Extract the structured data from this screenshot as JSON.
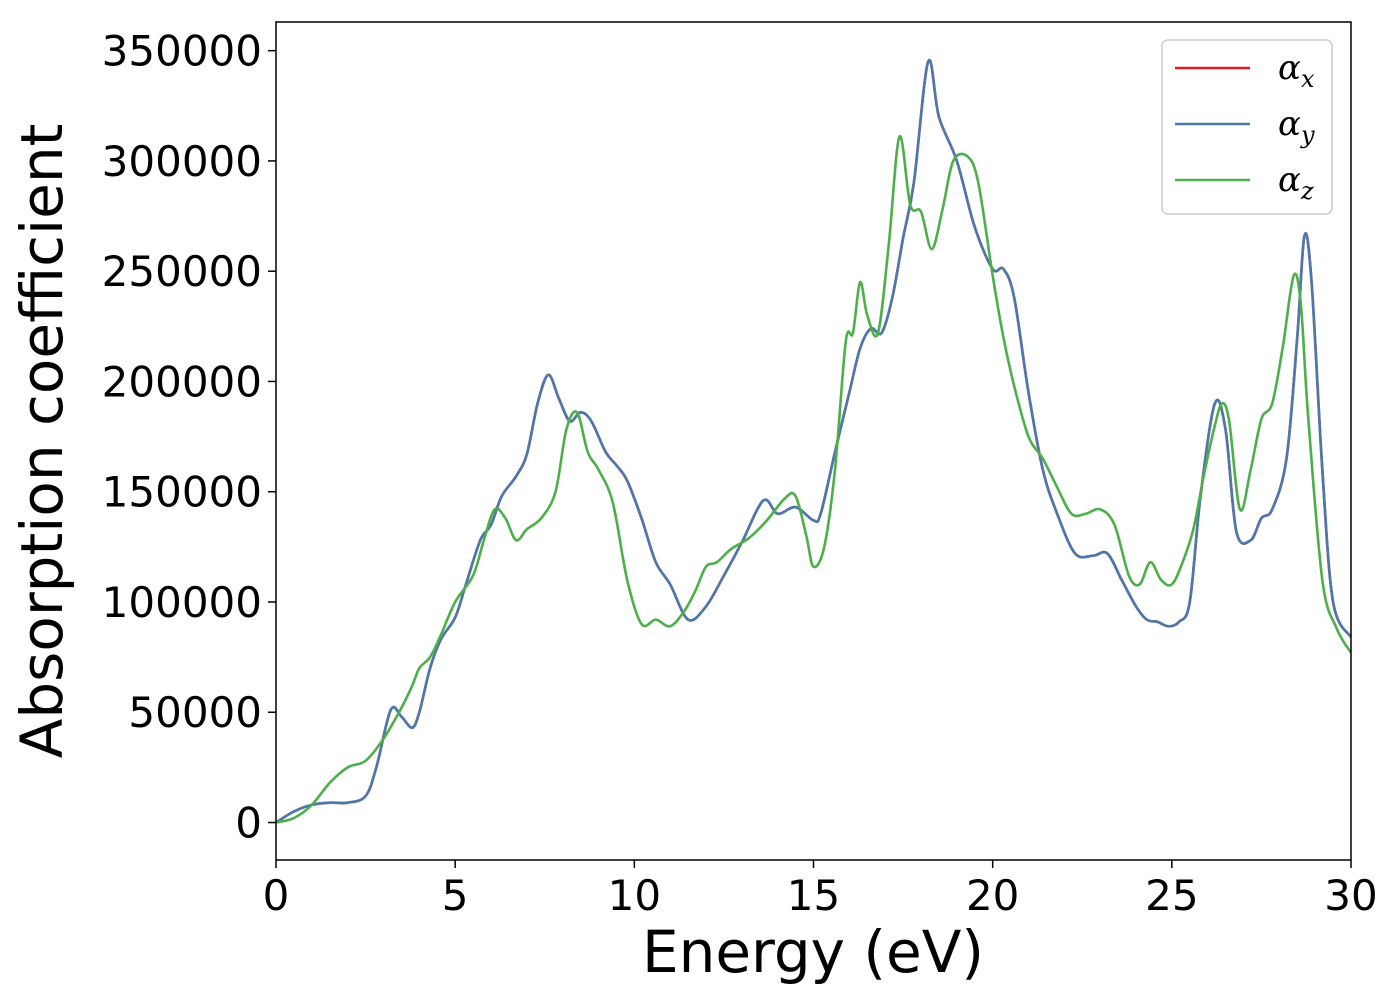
{
  "chart_data": {
    "type": "line",
    "title": "",
    "xlabel": "Energy (eV)",
    "ylabel": "Absorption coefficient",
    "xlim": [
      0,
      30
    ],
    "ylim": [
      -17000,
      363000
    ],
    "xticks": [
      0,
      5,
      10,
      15,
      20,
      25,
      30
    ],
    "yticks": [
      0,
      50000,
      100000,
      150000,
      200000,
      250000,
      300000,
      350000
    ],
    "grid": false,
    "legend_position": "top-right",
    "series": [
      {
        "name": "α_x",
        "legend_symbol": "α",
        "legend_subscript": "x",
        "color": "#e41a1c",
        "hidden_under": "α_y",
        "x": [
          0,
          0.5,
          1,
          1.5,
          2,
          2.5,
          2.8,
          3.2,
          3.5,
          3.8,
          4,
          4.3,
          4.6,
          5,
          5.3,
          5.7,
          6,
          6.3,
          6.7,
          7,
          7.3,
          7.6,
          7.9,
          8.2,
          8.5,
          8.8,
          9.2,
          9.5,
          9.8,
          10.2,
          10.6,
          11,
          11.5,
          12,
          12.5,
          13,
          13.6,
          14,
          14.5,
          15,
          15.2,
          15.6,
          16,
          16.3,
          16.6,
          16.9,
          17.2,
          17.5,
          17.8,
          18.2,
          18.5,
          19,
          19.5,
          20,
          20.3,
          20.6,
          21,
          21.4,
          21.8,
          22.3,
          22.8,
          23.2,
          23.6,
          24,
          24.3,
          24.6,
          24.9,
          25.2,
          25.5,
          25.8,
          26.2,
          26.5,
          26.8,
          27.2,
          27.5,
          27.8,
          28.2,
          28.5,
          28.7,
          28.9,
          29.2,
          29.5,
          30
        ],
        "y": [
          0,
          5000,
          8000,
          9000,
          9000,
          12000,
          25000,
          51000,
          48000,
          43000,
          50000,
          70000,
          83000,
          93000,
          108000,
          128000,
          135000,
          148000,
          157000,
          167000,
          190000,
          203000,
          192000,
          182000,
          186000,
          182000,
          168000,
          162000,
          155000,
          138000,
          118000,
          108000,
          92000,
          98000,
          112000,
          127000,
          146000,
          140000,
          143000,
          137000,
          140000,
          168000,
          195000,
          215000,
          224000,
          222000,
          238000,
          265000,
          290000,
          345000,
          320000,
          300000,
          270000,
          251000,
          251000,
          238000,
          195000,
          160000,
          140000,
          122000,
          121000,
          122000,
          110000,
          98000,
          92000,
          91000,
          89000,
          91000,
          100000,
          148000,
          190000,
          178000,
          132000,
          128000,
          138000,
          142000,
          165000,
          220000,
          266000,
          245000,
          160000,
          100000,
          84000
        ]
      },
      {
        "name": "α_y",
        "legend_symbol": "α",
        "legend_subscript": "y",
        "color": "#4a79ad",
        "x": [
          0,
          0.5,
          1,
          1.5,
          2,
          2.5,
          2.8,
          3.2,
          3.5,
          3.8,
          4,
          4.3,
          4.6,
          5,
          5.3,
          5.7,
          6,
          6.3,
          6.7,
          7,
          7.3,
          7.6,
          7.9,
          8.2,
          8.5,
          8.8,
          9.2,
          9.5,
          9.8,
          10.2,
          10.6,
          11,
          11.5,
          12,
          12.5,
          13,
          13.6,
          14,
          14.5,
          15,
          15.2,
          15.6,
          16,
          16.3,
          16.6,
          16.9,
          17.2,
          17.5,
          17.8,
          18.2,
          18.5,
          19,
          19.5,
          20,
          20.3,
          20.6,
          21,
          21.4,
          21.8,
          22.3,
          22.8,
          23.2,
          23.6,
          24,
          24.3,
          24.6,
          24.9,
          25.2,
          25.5,
          25.8,
          26.2,
          26.5,
          26.8,
          27.2,
          27.5,
          27.8,
          28.2,
          28.5,
          28.7,
          28.9,
          29.2,
          29.5,
          30
        ],
        "y": [
          0,
          5000,
          8000,
          9000,
          9000,
          12000,
          25000,
          51000,
          48000,
          43000,
          50000,
          70000,
          83000,
          93000,
          108000,
          128000,
          135000,
          148000,
          157000,
          167000,
          190000,
          203000,
          192000,
          182000,
          186000,
          182000,
          168000,
          162000,
          155000,
          138000,
          118000,
          108000,
          92000,
          98000,
          112000,
          127000,
          146000,
          140000,
          143000,
          137000,
          140000,
          168000,
          195000,
          215000,
          224000,
          222000,
          238000,
          265000,
          290000,
          345000,
          320000,
          300000,
          270000,
          251000,
          251000,
          238000,
          195000,
          160000,
          140000,
          122000,
          121000,
          122000,
          110000,
          98000,
          92000,
          91000,
          89000,
          91000,
          100000,
          148000,
          190000,
          178000,
          132000,
          128000,
          138000,
          142000,
          165000,
          220000,
          266000,
          245000,
          160000,
          100000,
          84000
        ]
      },
      {
        "name": "α_z",
        "legend_symbol": "α",
        "legend_subscript": "z",
        "color": "#4daf4a",
        "x": [
          0,
          0.5,
          1,
          1.5,
          2,
          2.5,
          3,
          3.5,
          3.8,
          4,
          4.3,
          4.6,
          5,
          5.5,
          5.8,
          6.1,
          6.4,
          6.7,
          7,
          7.4,
          7.8,
          8.1,
          8.4,
          8.7,
          9,
          9.4,
          9.8,
          10.2,
          10.6,
          11,
          11.4,
          11.7,
          12,
          12.3,
          12.7,
          13.2,
          13.7,
          14.2,
          14.5,
          14.8,
          15,
          15.3,
          15.6,
          15.9,
          16.1,
          16.3,
          16.5,
          16.8,
          17.1,
          17.4,
          17.7,
          18,
          18.3,
          18.6,
          18.9,
          19.3,
          19.6,
          20,
          20.3,
          20.6,
          21,
          21.4,
          21.8,
          22.2,
          22.6,
          23,
          23.4,
          23.8,
          24.1,
          24.4,
          24.7,
          25,
          25.3,
          25.6,
          25.9,
          26.2,
          26.4,
          26.6,
          26.9,
          27.2,
          27.5,
          27.8,
          28.1,
          28.4,
          28.6,
          28.8,
          29.2,
          29.6,
          30
        ],
        "y": [
          0,
          2000,
          8000,
          18000,
          25000,
          28000,
          38000,
          52000,
          62000,
          70000,
          75000,
          85000,
          100000,
          112000,
          128000,
          142000,
          138000,
          128000,
          133000,
          138000,
          150000,
          178000,
          186000,
          168000,
          160000,
          145000,
          110000,
          90000,
          92000,
          89000,
          96000,
          105000,
          116000,
          118000,
          124000,
          129000,
          137000,
          147000,
          148000,
          130000,
          116000,
          125000,
          160000,
          218000,
          222000,
          245000,
          230000,
          222000,
          262000,
          311000,
          280000,
          277000,
          260000,
          278000,
          300000,
          302000,
          290000,
          248000,
          220000,
          198000,
          175000,
          165000,
          152000,
          140000,
          140000,
          142000,
          135000,
          112000,
          108000,
          118000,
          110000,
          108000,
          118000,
          133000,
          158000,
          180000,
          190000,
          182000,
          142000,
          160000,
          183000,
          190000,
          216000,
          248000,
          235000,
          185000,
          110000,
          88000,
          77000
        ]
      }
    ]
  }
}
